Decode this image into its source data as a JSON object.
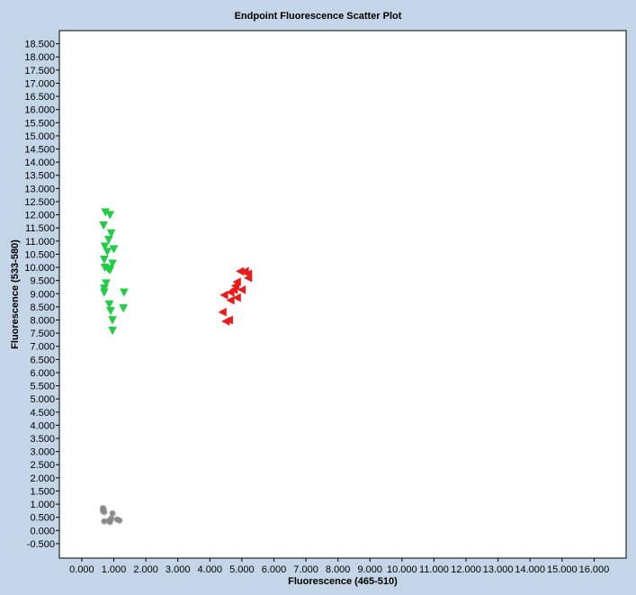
{
  "chart_data": {
    "type": "scatter",
    "title": "Endpoint Fluorescence Scatter Plot",
    "xlabel": "Fluorescence (465-510)",
    "ylabel": "Fluorescence (533-580)",
    "xlim": [
      -0.7,
      17.0
    ],
    "ylim": [
      -1.05,
      19.0
    ],
    "grid": false,
    "x_ticks": [
      {
        "value": 0,
        "label": "0.000"
      },
      {
        "value": 1,
        "label": "1.000"
      },
      {
        "value": 2,
        "label": "2.000"
      },
      {
        "value": 3,
        "label": "3.000"
      },
      {
        "value": 4,
        "label": "4.000"
      },
      {
        "value": 5,
        "label": "5.000"
      },
      {
        "value": 6,
        "label": "6.000"
      },
      {
        "value": 7,
        "label": "7.000"
      },
      {
        "value": 8,
        "label": "8.000"
      },
      {
        "value": 9,
        "label": "9.000"
      },
      {
        "value": 10,
        "label": "10.000"
      },
      {
        "value": 11,
        "label": "11.000"
      },
      {
        "value": 12,
        "label": "12.000"
      },
      {
        "value": 13,
        "label": "13.000"
      },
      {
        "value": 14,
        "label": "14.000"
      },
      {
        "value": 15,
        "label": "15.000"
      },
      {
        "value": 16,
        "label": "16.000"
      }
    ],
    "y_ticks": [
      {
        "value": -0.5,
        "label": "-0.500"
      },
      {
        "value": 0,
        "label": "0.000"
      },
      {
        "value": 0.5,
        "label": "0.500"
      },
      {
        "value": 1,
        "label": "1.000"
      },
      {
        "value": 1.5,
        "label": "1.500"
      },
      {
        "value": 2,
        "label": "2.000"
      },
      {
        "value": 2.5,
        "label": "2.500"
      },
      {
        "value": 3,
        "label": "3.000"
      },
      {
        "value": 3.5,
        "label": "3.500"
      },
      {
        "value": 4,
        "label": "4.000"
      },
      {
        "value": 4.5,
        "label": "4.500"
      },
      {
        "value": 5,
        "label": "5.000"
      },
      {
        "value": 5.5,
        "label": "5.500"
      },
      {
        "value": 6,
        "label": "6.000"
      },
      {
        "value": 6.5,
        "label": "6.500"
      },
      {
        "value": 7,
        "label": "7.000"
      },
      {
        "value": 7.5,
        "label": "7.500"
      },
      {
        "value": 8,
        "label": "8.000"
      },
      {
        "value": 8.5,
        "label": "8.500"
      },
      {
        "value": 9,
        "label": "9.000"
      },
      {
        "value": 9.5,
        "label": "9.500"
      },
      {
        "value": 10,
        "label": "10.000"
      },
      {
        "value": 10.5,
        "label": "10.500"
      },
      {
        "value": 11,
        "label": "11.000"
      },
      {
        "value": 11.5,
        "label": "11.500"
      },
      {
        "value": 12,
        "label": "12.000"
      },
      {
        "value": 12.5,
        "label": "12.500"
      },
      {
        "value": 13,
        "label": "13.000"
      },
      {
        "value": 13.5,
        "label": "13.500"
      },
      {
        "value": 14,
        "label": "14.000"
      },
      {
        "value": 14.5,
        "label": "14.500"
      },
      {
        "value": 15,
        "label": "15.000"
      },
      {
        "value": 15.5,
        "label": "15.500"
      },
      {
        "value": 16,
        "label": "16.000"
      },
      {
        "value": 16.5,
        "label": "16.500"
      },
      {
        "value": 17,
        "label": "17.000"
      },
      {
        "value": 17.5,
        "label": "17.500"
      },
      {
        "value": 18,
        "label": "18.000"
      },
      {
        "value": 18.5,
        "label": "18.500"
      }
    ],
    "series": [
      {
        "color": "#22cc44",
        "marker": "triangle-down",
        "points": [
          [
            0.74,
            12.1
          ],
          [
            0.88,
            12.0
          ],
          [
            0.68,
            11.6
          ],
          [
            0.92,
            11.3
          ],
          [
            0.84,
            11.05
          ],
          [
            0.72,
            10.8
          ],
          [
            1.0,
            10.7
          ],
          [
            0.8,
            10.6
          ],
          [
            0.7,
            10.3
          ],
          [
            0.96,
            10.15
          ],
          [
            0.72,
            10.0
          ],
          [
            0.82,
            9.95
          ],
          [
            0.88,
            9.9
          ],
          [
            0.76,
            9.4
          ],
          [
            0.7,
            9.2
          ],
          [
            0.7,
            9.05
          ],
          [
            1.32,
            9.05
          ],
          [
            0.86,
            8.6
          ],
          [
            0.9,
            8.35
          ],
          [
            1.3,
            8.45
          ],
          [
            0.96,
            8.0
          ],
          [
            0.96,
            7.6
          ]
        ]
      },
      {
        "color": "#e81c1c",
        "marker": "triangle-left",
        "points": [
          [
            4.95,
            9.85
          ],
          [
            5.1,
            9.85
          ],
          [
            5.2,
            9.75
          ],
          [
            5.2,
            9.6
          ],
          [
            4.85,
            9.45
          ],
          [
            4.8,
            9.3
          ],
          [
            4.75,
            9.15
          ],
          [
            4.65,
            9.05
          ],
          [
            5.0,
            9.15
          ],
          [
            4.45,
            8.95
          ],
          [
            4.85,
            8.85
          ],
          [
            4.65,
            8.75
          ],
          [
            4.4,
            8.3
          ],
          [
            4.6,
            8.0
          ],
          [
            4.5,
            7.95
          ]
        ]
      },
      {
        "color": "#888888",
        "marker": "asterisk",
        "points": [
          [
            0.66,
            0.85
          ],
          [
            0.68,
            0.8
          ],
          [
            0.66,
            0.75
          ],
          [
            0.7,
            0.7
          ],
          [
            0.96,
            0.65
          ],
          [
            0.92,
            0.45
          ],
          [
            1.1,
            0.42
          ],
          [
            0.86,
            0.38
          ],
          [
            1.18,
            0.38
          ],
          [
            0.7,
            0.35
          ],
          [
            0.88,
            0.32
          ]
        ]
      }
    ]
  }
}
